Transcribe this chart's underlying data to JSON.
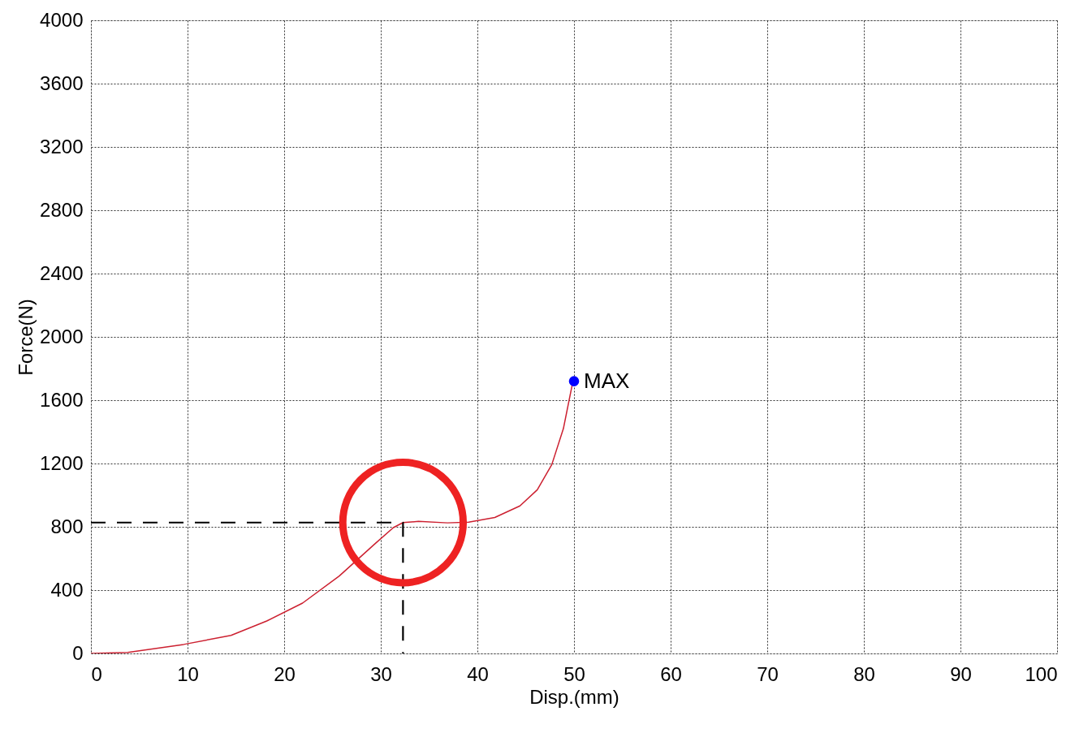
{
  "chart_data": {
    "type": "line",
    "xlabel": "Disp.(mm)",
    "ylabel": "Force(N)",
    "xlim": [
      0,
      100
    ],
    "xticks": [
      0,
      10,
      20,
      30,
      40,
      50,
      60,
      70,
      80,
      90,
      100
    ],
    "ylim": [
      0,
      4000
    ],
    "yticks": [
      0,
      400,
      800,
      1200,
      1600,
      2000,
      2400,
      2800,
      3200,
      3600,
      4000
    ],
    "grid": true,
    "series": [
      {
        "color": "#cc2030",
        "line_style": "solid",
        "x": [
          0,
          3.8,
          9.6,
          14.5,
          18.2,
          21.9,
          25.7,
          29.4,
          31.3,
          32.3,
          33.9,
          36.9,
          39.1,
          41.8,
          44.4,
          46.2,
          47.7,
          48.9,
          49.8,
          50
        ],
        "values": [
          0,
          7,
          57,
          114,
          205,
          318,
          489,
          693,
          795,
          827,
          834,
          825,
          830,
          859,
          932,
          1034,
          1193,
          1420,
          1693,
          1720
        ]
      },
      {
        "color": "#000000",
        "line_style": "dashed",
        "x": [
          0,
          32.3,
          32.3
        ],
        "values": [
          827,
          827,
          0
        ]
      },
      {
        "type": "scatter",
        "color": "#0000ff",
        "marker": "circle",
        "x": [
          50
        ],
        "values": [
          1720
        ]
      }
    ],
    "annotations": [
      {
        "text": "MAX",
        "x": 50,
        "y": 1720
      }
    ]
  }
}
